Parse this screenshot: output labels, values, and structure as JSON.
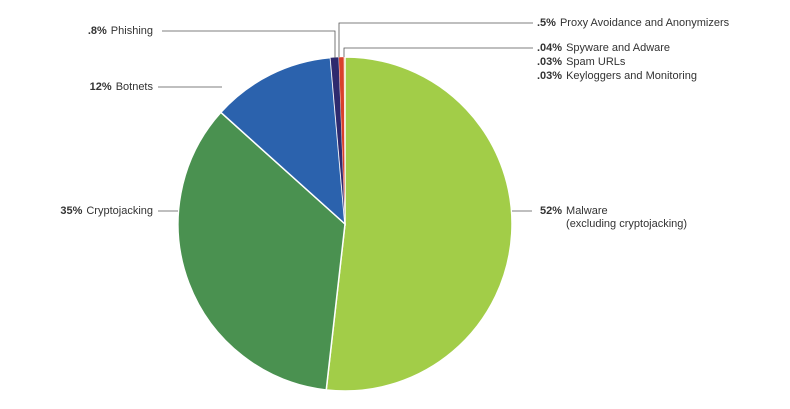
{
  "chart_data": {
    "type": "pie",
    "categories": [
      "Malware\n(excluding cryptojacking)",
      "Cryptojacking",
      "Botnets",
      "Phishing",
      "Proxy Avoidance and Anonymizers",
      "Spyware and Adware",
      "Spam URLs",
      "Keyloggers and Monitoring"
    ],
    "values": [
      52,
      35,
      12,
      0.8,
      0.5,
      0.04,
      0.03,
      0.03
    ],
    "value_labels": [
      "52%",
      "35%",
      "12%",
      ".8%",
      ".5%",
      ".04%",
      ".03%",
      ".03%"
    ],
    "colors": [
      "#a2cd48",
      "#4a9150",
      "#2b62ad",
      "#2e2a6e",
      "#d9402b",
      "#f08a24",
      "#f5b335",
      "#e86a2c"
    ]
  }
}
